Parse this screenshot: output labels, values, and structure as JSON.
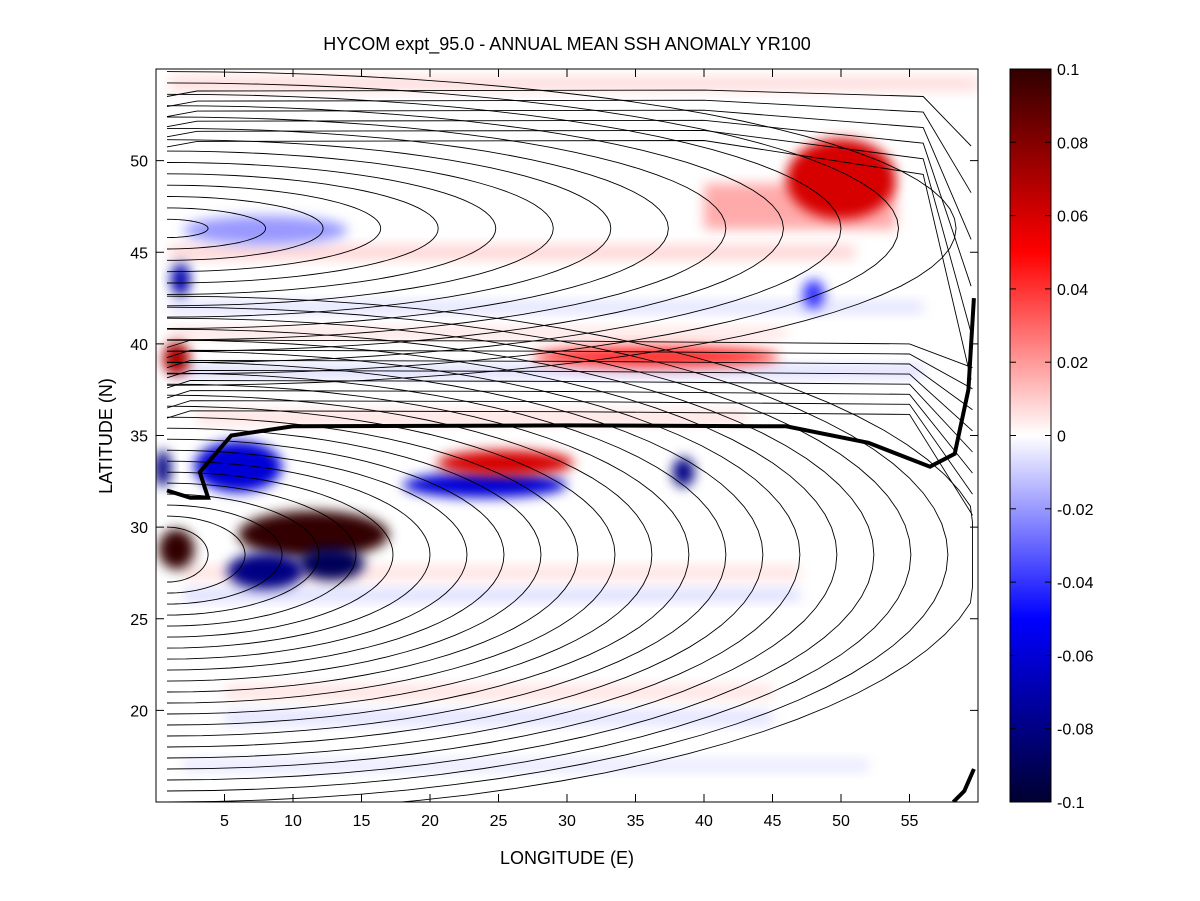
{
  "chart_data": {
    "type": "heatmap",
    "title": "HYCOM expt_95.0 - ANNUAL MEAN SSH ANOMALY YR100",
    "xlabel": "LONGITUDE (E)",
    "ylabel": "LATITUDE (N)",
    "xlim": [
      0,
      60
    ],
    "ylim": [
      15,
      55
    ],
    "xticks": [
      5,
      10,
      15,
      20,
      25,
      30,
      35,
      40,
      45,
      50,
      55
    ],
    "yticks": [
      20,
      25,
      30,
      35,
      40,
      45,
      50
    ],
    "colorbar": {
      "min": -0.1,
      "max": 0.1,
      "ticks": [
        0.1,
        0.08,
        0.06,
        0.04,
        0.02,
        0,
        -0.02,
        -0.04,
        -0.06,
        -0.08,
        -0.1
      ],
      "tick_labels": [
        "0.1",
        "0.08",
        "0.06",
        "0.04",
        "0.02",
        "0",
        "-0.02",
        "-0.04",
        "-0.06",
        "-0.08",
        "-0.1"
      ],
      "colors": [
        "#000030",
        "#0000ff",
        "#ffffff",
        "#ff0000",
        "#300000"
      ]
    },
    "anomaly_features": [
      {
        "lon": 11.5,
        "lat": 29.6,
        "value": 0.1
      },
      {
        "lon": 1.5,
        "lat": 28.8,
        "value": 0.1
      },
      {
        "lon": 12.8,
        "lat": 28.0,
        "value": -0.09
      },
      {
        "lon": 8.0,
        "lat": 27.6,
        "value": -0.08
      },
      {
        "lon": 6.0,
        "lat": 33.3,
        "value": -0.06
      },
      {
        "lon": 24.0,
        "lat": 32.3,
        "value": -0.06
      },
      {
        "lon": 38.5,
        "lat": 33.0,
        "value": -0.08
      },
      {
        "lon": 25.5,
        "lat": 33.5,
        "value": 0.06
      },
      {
        "lon": 50.0,
        "lat": 49.0,
        "value": 0.06
      },
      {
        "lon": 1.5,
        "lat": 39.2,
        "value": 0.07
      },
      {
        "lon": 1.8,
        "lat": 43.5,
        "value": -0.07
      },
      {
        "lon": 36.5,
        "lat": 39.3,
        "value": 0.04
      },
      {
        "lon": 0.5,
        "lat": 33.2,
        "value": -0.08
      },
      {
        "lon": 48.0,
        "lat": 42.7,
        "value": -0.04
      },
      {
        "lon": 8.0,
        "lat": 46.2,
        "value": -0.02
      }
    ],
    "contours": "black streamfunction-style contour lines; bold black contour near latitude 35.5 N",
    "colors": {
      "positive": "#ff0000",
      "negative": "#0000ff",
      "contour": "#000000"
    }
  }
}
